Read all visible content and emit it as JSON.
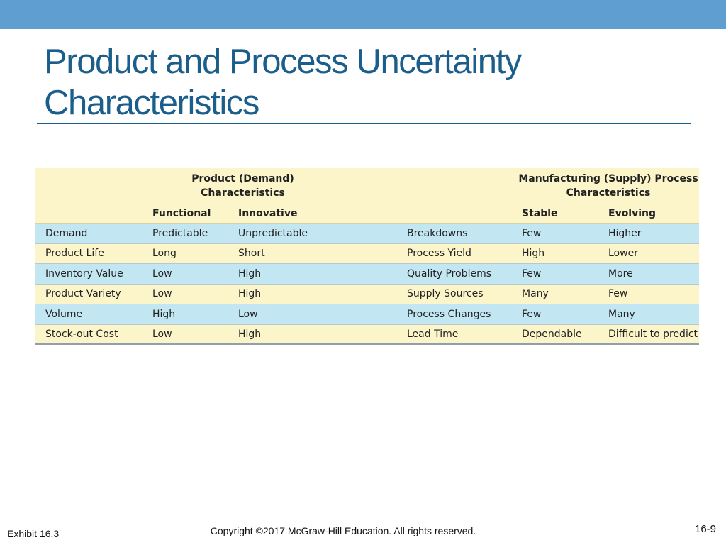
{
  "slide": {
    "title_line1": "Product and Process Uncertainty",
    "title_line2": "Characteristics"
  },
  "table": {
    "group_headers": {
      "product_line1": "Product (Demand)",
      "product_line2": "Characteristics",
      "process_line1": "Manufacturing (Supply) Process",
      "process_line2": "Characteristics"
    },
    "column_headers": {
      "functional": "Functional",
      "innovative": "Innovative",
      "stable": "Stable",
      "evolving": "Evolving"
    },
    "rows": [
      {
        "product_attr": "Demand",
        "functional": "Predictable",
        "innovative": "Unpredictable",
        "process_attr": "Breakdowns",
        "stable": "Few",
        "evolving": "Higher"
      },
      {
        "product_attr": "Product Life",
        "functional": "Long",
        "innovative": "Short",
        "process_attr": "Process Yield",
        "stable": "High",
        "evolving": "Lower"
      },
      {
        "product_attr": "Inventory Value",
        "functional": "Low",
        "innovative": "High",
        "process_attr": "Quality Problems",
        "stable": "Few",
        "evolving": "More"
      },
      {
        "product_attr": "Product Variety",
        "functional": "Low",
        "innovative": "High",
        "process_attr": "Supply Sources",
        "stable": "Many",
        "evolving": "Few"
      },
      {
        "product_attr": "Volume",
        "functional": "High",
        "innovative": "Low",
        "process_attr": "Process Changes",
        "stable": "Few",
        "evolving": "Many"
      },
      {
        "product_attr": "Stock-out Cost",
        "functional": "Low",
        "innovative": "High",
        "process_attr": "Lead Time",
        "stable": "Dependable",
        "evolving": "Difficult to predict"
      }
    ]
  },
  "footer": {
    "exhibit": "Exhibit 16.3",
    "copyright": "Copyright ©2017 McGraw-Hill Education. All rights reserved.",
    "page": "16-9"
  },
  "colors": {
    "top_bar": "#5f9ed1",
    "title": "#1b5e8b",
    "row_blue": "#c3e6f3",
    "row_yellow": "#fbf5c9"
  }
}
